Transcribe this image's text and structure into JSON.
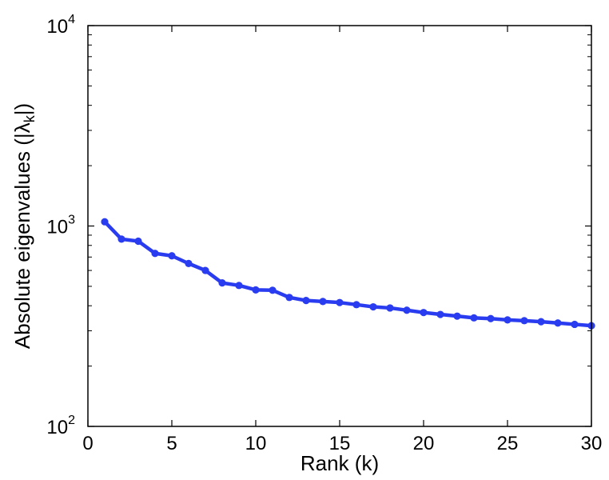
{
  "chart_data": {
    "type": "line",
    "xlabel": "Rank (k)",
    "ylabel": {
      "prefix": "Absolute eigenvalues (|",
      "symbol": "λ",
      "subscript": "k",
      "suffix": "|)"
    },
    "xlim": [
      0,
      30
    ],
    "ylim": [
      100,
      10000
    ],
    "yscale": "log",
    "x_ticks": [
      0,
      5,
      10,
      15,
      20,
      25,
      30
    ],
    "y_ticks": [
      {
        "value": 100,
        "base": "10",
        "exp": "2"
      },
      {
        "value": 1000,
        "base": "10",
        "exp": "3"
      },
      {
        "value": 10000,
        "base": "10",
        "exp": "4"
      }
    ],
    "grid": false,
    "series": [
      {
        "color": "#2a3cf0",
        "marker": "circle",
        "x": [
          1,
          2,
          3,
          4,
          5,
          6,
          7,
          8,
          9,
          10,
          11,
          12,
          13,
          14,
          15,
          16,
          17,
          18,
          19,
          20,
          21,
          22,
          23,
          24,
          25,
          26,
          27,
          28,
          29,
          30
        ],
        "y": [
          1050,
          860,
          840,
          730,
          710,
          650,
          600,
          520,
          505,
          480,
          478,
          440,
          425,
          420,
          415,
          405,
          395,
          390,
          380,
          370,
          362,
          355,
          348,
          345,
          340,
          337,
          333,
          328,
          323,
          318
        ]
      }
    ]
  }
}
